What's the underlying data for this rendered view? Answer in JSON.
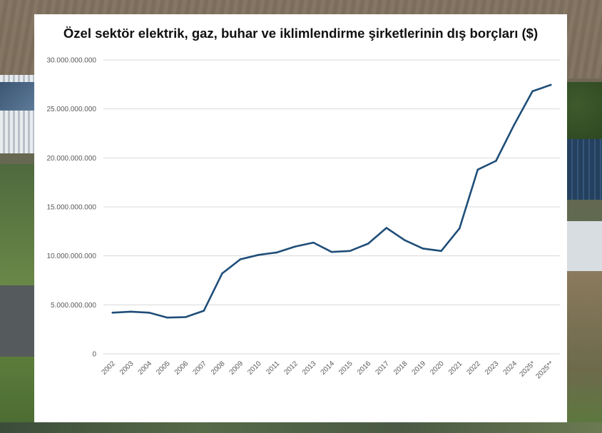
{
  "chart_data": {
    "type": "line",
    "title": "Özel sektör elektrik, gaz, buhar ve iklimlendirme şirketlerinin dış borçları ($)",
    "xlabel": "",
    "ylabel": "",
    "ylim": [
      0,
      30000000000
    ],
    "y_ticks": [
      {
        "value": 0,
        "label": "0"
      },
      {
        "value": 5000000000,
        "label": "5.000.000.000"
      },
      {
        "value": 10000000000,
        "label": "10.000.000.000"
      },
      {
        "value": 15000000000,
        "label": "15.000.000.000"
      },
      {
        "value": 20000000000,
        "label": "20.000.000.000"
      },
      {
        "value": 25000000000,
        "label": "25.000.000.000"
      },
      {
        "value": 30000000000,
        "label": "30.000.000.000"
      }
    ],
    "grid": true,
    "legend": "none",
    "categories": [
      "2002",
      "2003",
      "2004",
      "2005",
      "2006",
      "2007",
      "2008",
      "2009",
      "2010",
      "2011",
      "2012",
      "2013",
      "2014",
      "2015",
      "2016",
      "2017",
      "2018",
      "2019",
      "2020",
      "2021",
      "2022",
      "2023",
      "2024",
      "2025*",
      "2025**"
    ],
    "series": [
      {
        "color": "#1f4e79",
        "values": [
          4200000000,
          4300000000,
          4200000000,
          3700000000,
          3750000000,
          4400000000,
          8200000000,
          9650000000,
          10100000000,
          10350000000,
          10950000000,
          11350000000,
          10400000000,
          10500000000,
          11250000000,
          12850000000,
          11600000000,
          10750000000,
          10500000000,
          12800000000,
          18800000000,
          19700000000,
          23400000000,
          26800000000,
          27450000000
        ]
      }
    ]
  }
}
